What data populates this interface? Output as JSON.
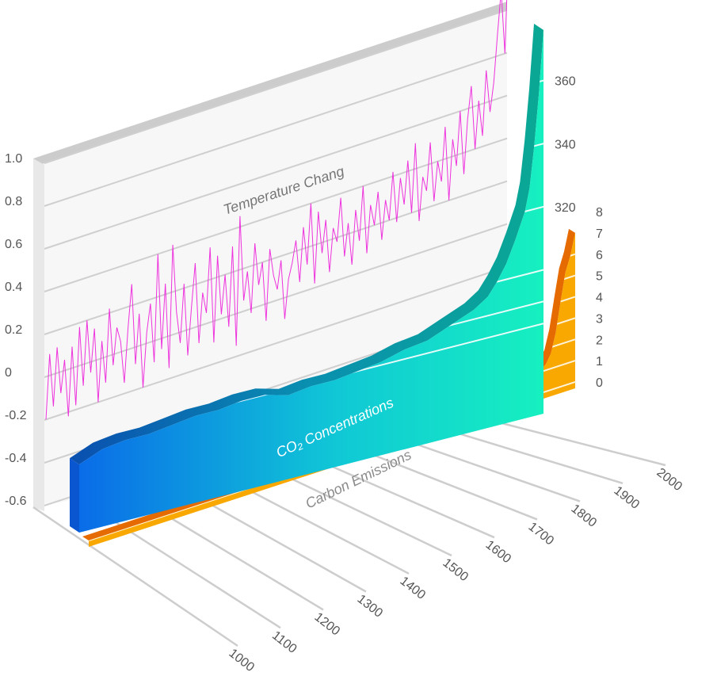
{
  "chart_data": {
    "type": "line",
    "subtype": "3d-perspective composite",
    "grid": true,
    "x": {
      "ticks": [
        "1000",
        "1100",
        "1200",
        "1300",
        "1400",
        "1500",
        "1600",
        "1700",
        "1800",
        "1900",
        "2000"
      ],
      "range": [
        1000,
        2000
      ]
    },
    "temperature": {
      "label": "Temperature Chang",
      "axis_ticks": [
        "1.0",
        "0.8",
        "0.6",
        "0.4",
        "0.2",
        "0",
        "-0.2",
        "-0.4",
        "-0.6"
      ],
      "ylim": [
        -0.6,
        1.0
      ],
      "color": "#ee33dd",
      "values": [
        -0.2,
        0.1,
        -0.15,
        0.12,
        -0.1,
        0.05,
        -0.22,
        0.1,
        -0.18,
        0.18,
        -0.1,
        0.2,
        -0.05,
        0.15,
        -0.2,
        0.08,
        -0.12,
        0.22,
        -0.05,
        0.12,
        0.05,
        -0.15,
        0.1,
        0.3,
        -0.08,
        0.15,
        -0.2,
        0.05,
        0.18,
        -0.1,
        0.4,
        -0.05,
        0.25,
        -0.15,
        0.42,
        0.1,
        -0.05,
        0.22,
        -0.12,
        0.1,
        0.3,
        -0.08,
        0.15,
        0.05,
        0.35,
        -0.1,
        0.3,
        0.02,
        0.2,
        -0.05,
        0.32,
        -0.15,
        0.45,
        0.05,
        0.18,
        -0.02,
        0.3,
        0.1,
        0.2,
        -0.08,
        0.25,
        0.12,
        0.05,
        0.18,
        -0.1,
        0.08,
        0.15,
        0.25,
        0.05,
        0.3,
        0.12,
        0.4,
        0.02,
        0.35,
        0.15,
        0.3,
        0.05,
        0.25,
        0.18,
        0.38,
        0.1,
        0.25,
        0.05,
        0.3,
        0.15,
        0.4,
        0.08,
        0.3,
        0.2,
        0.35,
        0.12,
        0.3,
        0.2,
        0.42,
        0.18,
        0.38,
        0.25,
        0.45,
        0.2,
        0.52,
        0.15,
        0.35,
        0.28,
        0.5,
        0.22,
        0.4,
        0.3,
        0.55,
        0.2,
        0.48,
        0.35,
        0.6,
        0.3,
        0.55,
        0.7,
        0.4,
        0.62,
        0.45,
        0.75,
        0.55,
        0.68,
        0.9,
        1.1,
        0.8,
        1.3
      ]
    },
    "co2": {
      "label": "CO₂ Concentrations",
      "axis_ticks": [
        "360",
        "340",
        "320"
      ],
      "tick_values": [
        360,
        340,
        320
      ],
      "ylim": [
        272,
        380
      ],
      "colors": [
        "#0a6ce8",
        "#16e6c7"
      ],
      "x": [
        1000,
        1050,
        1100,
        1150,
        1200,
        1250,
        1300,
        1350,
        1400,
        1450,
        1500,
        1550,
        1600,
        1650,
        1700,
        1750,
        1800,
        1850,
        1880,
        1900,
        1920,
        1940,
        1960,
        1970,
        1980,
        1990,
        2000
      ],
      "values": [
        276,
        279,
        280,
        280,
        281,
        282,
        282,
        283,
        283,
        281,
        282,
        282,
        283,
        284,
        286,
        287,
        290,
        293,
        296,
        300,
        305,
        312,
        320,
        327,
        340,
        356,
        376
      ]
    },
    "carbon_emissions": {
      "label": "Carbon Emissions",
      "axis_ticks": [
        "8",
        "7",
        "6",
        "5",
        "4",
        "3",
        "2",
        "1",
        "0"
      ],
      "tick_values": [
        8,
        7,
        6,
        5,
        4,
        3,
        2,
        1,
        0
      ],
      "ylim": [
        0,
        8
      ],
      "colors": [
        "#f5a000",
        "#ff7a00"
      ],
      "x": [
        1000,
        1700,
        1750,
        1800,
        1850,
        1900,
        1920,
        1940,
        1950,
        1960,
        1970,
        1980,
        1990,
        2000
      ],
      "values": [
        0,
        0,
        0,
        0,
        0.05,
        0.5,
        0.9,
        1.3,
        1.7,
        2.6,
        4.0,
        5.3,
        6.0,
        7.0
      ]
    }
  }
}
